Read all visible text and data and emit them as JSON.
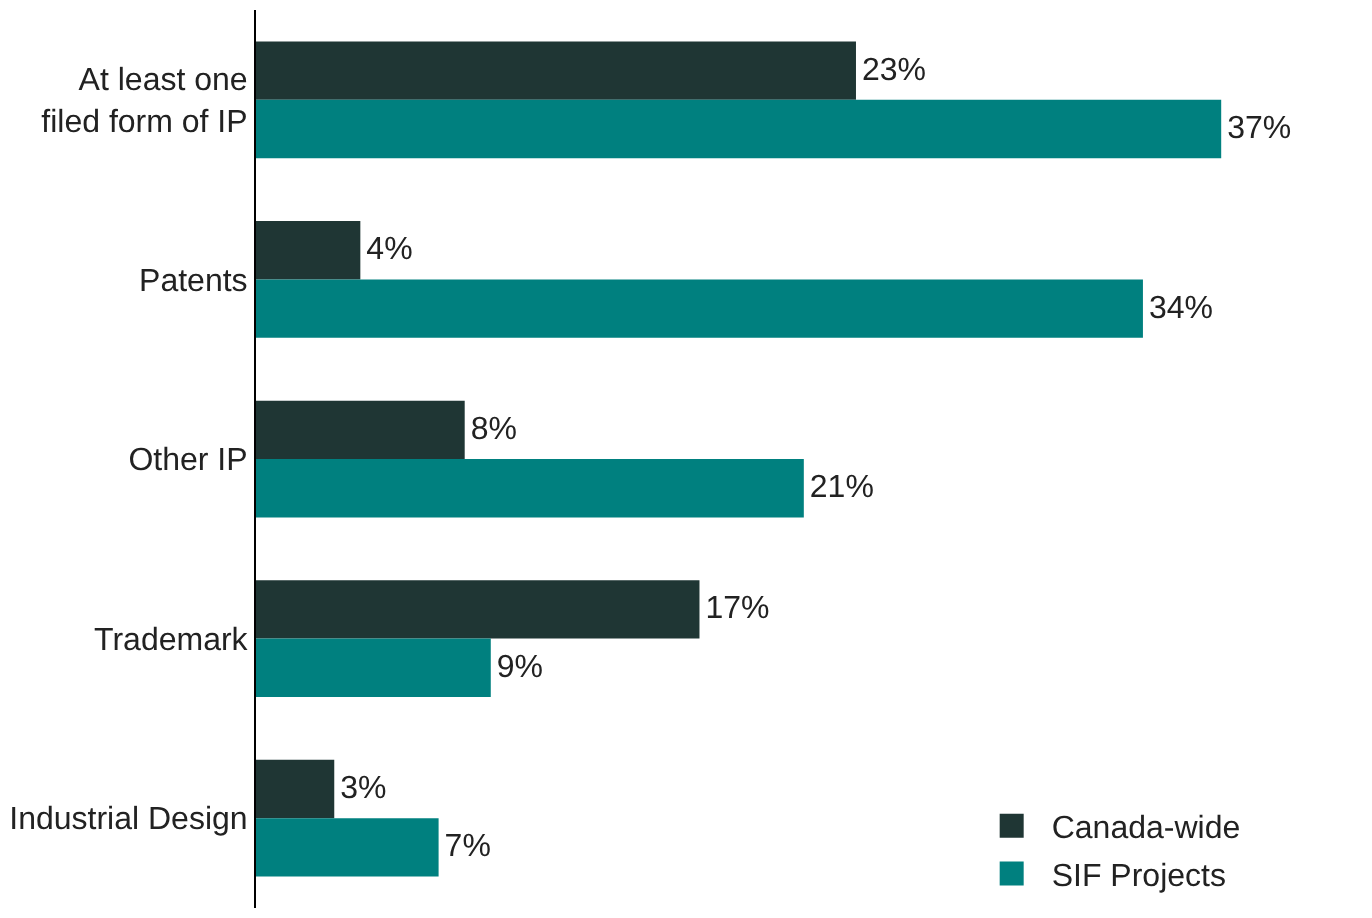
{
  "chart_data": {
    "type": "bar",
    "orientation": "horizontal",
    "categories": [
      "At least one filed form of IP",
      "Patents",
      "Other IP",
      "Trademark",
      "Industrial Design"
    ],
    "series": [
      {
        "name": "Canada-wide",
        "color": "#1f3634",
        "values": [
          23,
          4,
          8,
          17,
          3
        ],
        "value_labels": [
          "23%",
          "4%",
          "8%",
          "17%",
          "3%"
        ]
      },
      {
        "name": "SIF Projects",
        "color": "#00807f",
        "values": [
          37,
          34,
          21,
          9,
          7
        ],
        "value_labels": [
          "37%",
          "34%",
          "21%",
          "9%",
          "7%"
        ]
      }
    ],
    "legend": "bottom right"
  }
}
